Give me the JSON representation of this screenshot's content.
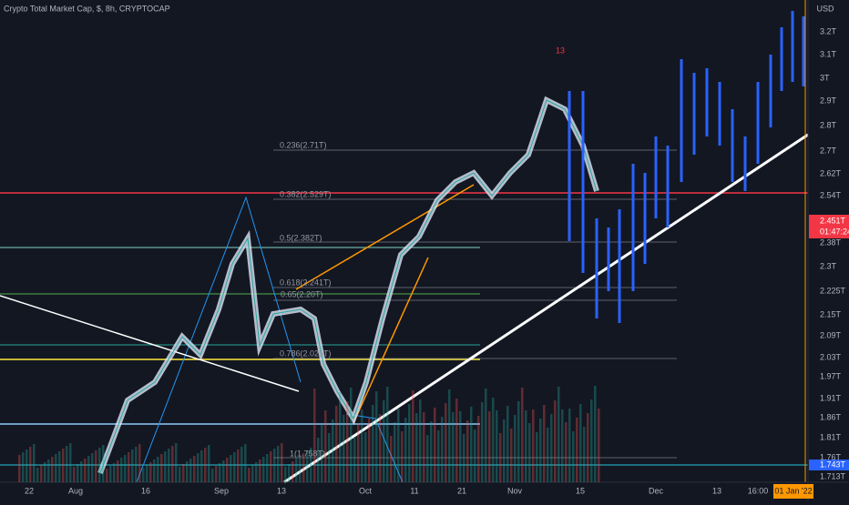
{
  "header": {
    "title": "Crypto Total Market Cap, $, 8h, CRYPTOCAP"
  },
  "price_axis": {
    "unit": "USD",
    "labels": [
      "3.2T",
      "3.1T",
      "3T",
      "2.9T",
      "2.8T",
      "2.7T",
      "2.62T",
      "2.54T",
      "2.38T",
      "2.3T",
      "2.225T",
      "2.15T",
      "2.09T",
      "2.03T",
      "1.97T",
      "1.91T",
      "1.86T",
      "1.81T",
      "1.76T",
      "1.713T"
    ]
  },
  "current_price": {
    "label": "2.451T",
    "countdown": "01:47:24"
  },
  "marker_price": {
    "label": "1.743T"
  },
  "time_axis": {
    "labels": [
      "22",
      "Aug",
      "16",
      "Sep",
      "13",
      "Oct",
      "11",
      "21",
      "Nov",
      "15",
      "Dec",
      "13",
      "16:00"
    ],
    "highlight": "01 Jan '22"
  },
  "fib_levels": [
    "0.236(2.71T)",
    "0.382(2.529T)",
    "0.5(2.382T)",
    "0.618(2.241T)",
    "0.65(2.20T)",
    "0.786(2.025T)",
    "1(1.758T)"
  ],
  "annotations": [
    "13"
  ]
}
